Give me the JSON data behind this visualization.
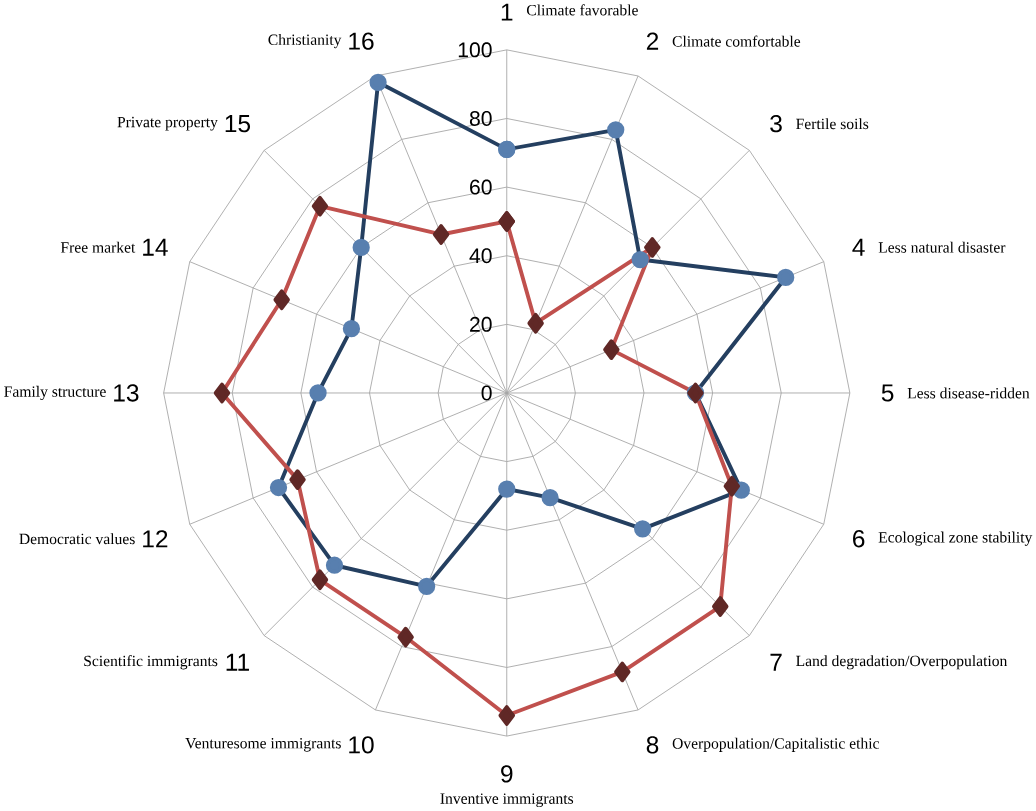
{
  "chart_data": {
    "type": "radar",
    "categories": [
      "1",
      "2",
      "3",
      "4",
      "5",
      "6",
      "7",
      "8",
      "9",
      "10",
      "11",
      "12",
      "13",
      "14",
      "15",
      "16"
    ],
    "annotations": [
      "Climate favorable",
      "Climate comfortable",
      "Fertile soils",
      "Less natural disaster",
      "Less disease-ridden",
      "Ecological zone stability",
      "Land degradation/Overpopulation",
      "Overpopulation/Capitalistic ethic",
      "Inventive immigrants",
      "Venturesome immigrants",
      "Scientific immigrants",
      "Democratic values",
      "Family structure",
      "Free market",
      "Private property",
      "Christianity"
    ],
    "ylim": [
      0,
      100
    ],
    "yticks": [
      0,
      20,
      40,
      60,
      80,
      100
    ],
    "grid": true,
    "line_style": "solid",
    "series": [
      {
        "color": "#243f60",
        "marker": "circle",
        "values": [
          71,
          83,
          55,
          88,
          55,
          74,
          56,
          33,
          28,
          61,
          71,
          72,
          55,
          49,
          60,
          98
        ]
      },
      {
        "color": "#c0504d",
        "marker": "diamond",
        "values": [
          50,
          22,
          60,
          33,
          55,
          71,
          88,
          88,
          94,
          77,
          77,
          66,
          83,
          71,
          77,
          50
        ]
      }
    ]
  }
}
